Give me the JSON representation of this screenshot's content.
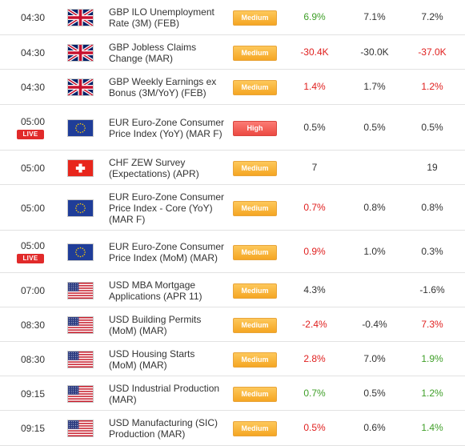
{
  "colors": {
    "positive": "#3f9f28",
    "negative": "#e0201f",
    "neutral": "#333333",
    "medium_badge": "#f5a623",
    "high_badge": "#ec4a42",
    "live_badge": "#e12a2a"
  },
  "rows": [
    {
      "time": "04:30",
      "live": "",
      "flag": "gb-flag-icon",
      "event": "GBP ILO Unemployment Rate (3M) (FEB)",
      "importance": "Medium",
      "actual": "6.9%",
      "actual_color": "positive",
      "forecast": "7.1%",
      "previous": "7.2%",
      "previous_color": "neutral"
    },
    {
      "time": "04:30",
      "live": "",
      "flag": "gb-flag-icon",
      "event": "GBP Jobless Claims Change (MAR)",
      "importance": "Medium",
      "actual": "-30.4K",
      "actual_color": "negative",
      "forecast": "-30.0K",
      "previous": "-37.0K",
      "previous_color": "negative"
    },
    {
      "time": "04:30",
      "live": "",
      "flag": "gb-flag-icon",
      "event": "GBP Weekly Earnings ex Bonus (3M/YoY) (FEB)",
      "importance": "Medium",
      "actual": "1.4%",
      "actual_color": "negative",
      "forecast": "1.7%",
      "previous": "1.2%",
      "previous_color": "negative"
    },
    {
      "time": "05:00",
      "live": "LIVE",
      "flag": "eu-flag-icon",
      "event": "EUR Euro-Zone Consumer Price Index (YoY) (MAR F)",
      "importance": "High",
      "actual": "0.5%",
      "actual_color": "neutral",
      "forecast": "0.5%",
      "previous": "0.5%",
      "previous_color": "neutral"
    },
    {
      "time": "05:00",
      "live": "",
      "flag": "ch-flag-icon",
      "event": "CHF ZEW Survey (Expectations) (APR)",
      "importance": "Medium",
      "actual": "7",
      "actual_color": "neutral",
      "forecast": "",
      "previous": "19",
      "previous_color": "neutral"
    },
    {
      "time": "05:00",
      "live": "",
      "flag": "eu-flag-icon",
      "event": "EUR Euro-Zone Consumer Price Index - Core (YoY) (MAR F)",
      "importance": "Medium",
      "actual": "0.7%",
      "actual_color": "negative",
      "forecast": "0.8%",
      "previous": "0.8%",
      "previous_color": "neutral"
    },
    {
      "time": "05:00",
      "live": "LIVE",
      "flag": "eu-flag-icon",
      "event": "EUR Euro-Zone Consumer Price Index (MoM) (MAR)",
      "importance": "Medium",
      "actual": "0.9%",
      "actual_color": "negative",
      "forecast": "1.0%",
      "previous": "0.3%",
      "previous_color": "neutral"
    },
    {
      "time": "07:00",
      "live": "",
      "flag": "us-flag-icon",
      "event": "USD MBA Mortgage Applications (APR 11)",
      "importance": "Medium",
      "actual": "4.3%",
      "actual_color": "neutral",
      "forecast": "",
      "previous": "-1.6%",
      "previous_color": "neutral"
    },
    {
      "time": "08:30",
      "live": "",
      "flag": "us-flag-icon",
      "event": "USD Building Permits (MoM) (MAR)",
      "importance": "Medium",
      "actual": "-2.4%",
      "actual_color": "negative",
      "forecast": "-0.4%",
      "previous": "7.3%",
      "previous_color": "negative"
    },
    {
      "time": "08:30",
      "live": "",
      "flag": "us-flag-icon",
      "event": "USD Housing Starts (MoM) (MAR)",
      "importance": "Medium",
      "actual": "2.8%",
      "actual_color": "negative",
      "forecast": "7.0%",
      "previous": "1.9%",
      "previous_color": "positive"
    },
    {
      "time": "09:15",
      "live": "",
      "flag": "us-flag-icon",
      "event": "USD Industrial Production (MAR)",
      "importance": "Medium",
      "actual": "0.7%",
      "actual_color": "positive",
      "forecast": "0.5%",
      "previous": "1.2%",
      "previous_color": "positive"
    },
    {
      "time": "09:15",
      "live": "",
      "flag": "us-flag-icon",
      "event": "USD Manufacturing (SIC) Production (MAR)",
      "importance": "Medium",
      "actual": "0.5%",
      "actual_color": "negative",
      "forecast": "0.6%",
      "previous": "1.4%",
      "previous_color": "positive"
    }
  ]
}
